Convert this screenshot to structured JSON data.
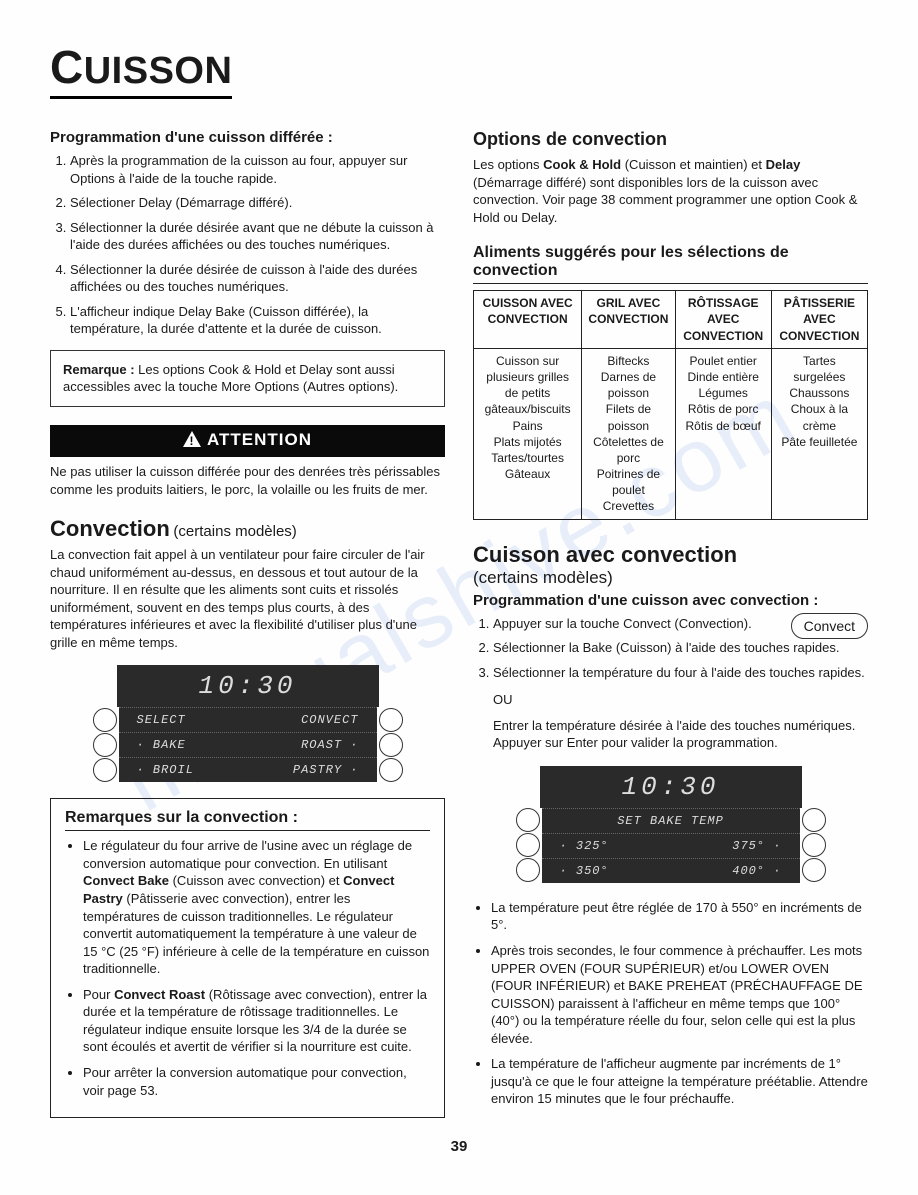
{
  "watermark": "manualshive.com",
  "page_title": "CUISSON",
  "left": {
    "h_prog": "Programmation d'une cuisson différée :",
    "steps": [
      "Après la programmation de la cuisson au four, appuyer sur Options à l'aide de la touche rapide.",
      "Sélectioner Delay (Démarrage différé).",
      "Sélectionner la durée désirée avant que ne débute la cuisson à l'aide des durées affichées ou des touches numériques.",
      "Sélectionner la durée désirée de cuisson à l'aide des durées affichées ou des touches numériques.",
      "L'afficheur indique Delay Bake (Cuisson différée), la température, la durée d'attente et la durée de cuisson."
    ],
    "note_label": "Remarque :",
    "note_text": " Les options Cook & Hold et Delay sont aussi accessibles avec la touche More Options (Autres options).",
    "warn_label": "ATTENTION",
    "warn_text": "Ne pas utiliser la cuisson différée pour des denrées très périssables comme les produits laitiers, le porc, la volaille ou les fruits de mer.",
    "h_conv": "Convection",
    "h_conv_sub": "(certains modèles)",
    "conv_para": "La convection fait appel à un ventilateur pour faire circuler de l'air chaud uniformément au-dessus, en dessous et tout autour de la nourriture. Il en résulte que les aliments sont cuits et rissolés uniformément, souvent en des temps plus courts, à des températures inférieures et avec la flexibilité d'utiliser plus d'une grille en même temps.",
    "display1": {
      "time": "10:30",
      "rows": [
        {
          "l": "SELECT",
          "r": "CONVECT"
        },
        {
          "l": "· BAKE",
          "r": "ROAST ·"
        },
        {
          "l": "· BROIL",
          "r": "PASTRY ·"
        }
      ]
    },
    "remarks_h": "Remarques sur la convection :",
    "remarks": [
      "Le régulateur du four arrive de l'usine avec un réglage de conversion automatique pour convection. En utilisant <b>Convect Bake</b> (Cuisson avec convection) et <b>Convect Pastry</b> (Pâtisserie avec convection), entrer les températures de cuisson traditionnelles. Le régulateur convertit automatiquement la température à une valeur de 15 °C (25 °F) inférieure à celle de la température en cuisson traditionnelle.",
      "Pour <b>Convect Roast</b> (Rôtissage avec convection), entrer la durée et la température de rôtissage traditionnelles. Le régulateur indique ensuite lorsque les 3/4 de la durée se sont écoulés et avertit de vérifier si la nourriture est cuite.",
      "Pour arrêter la conversion automatique pour convection, voir page 53."
    ]
  },
  "right": {
    "h_opt": "Options de convection",
    "opt_para": "Les options <b>Cook & Hold</b> (Cuisson et maintien) et <b>Delay</b> (Démarrage différé) sont disponibles lors de la cuisson avec convection. Voir page 38 comment programmer une option Cook & Hold ou Delay.",
    "h_foods": "Aliments suggérés pour les sélections de convection",
    "table": {
      "headers": [
        "CUISSON AVEC CONVECTION",
        "GRIL AVEC CONVECTION",
        "RÔTISSAGE AVEC CONVECTION",
        "PÂTISSERIE AVEC CONVECTION"
      ],
      "cells": [
        "Cuisson sur plusieurs grilles de petits gâteaux/biscuits\nPains\nPlats mijotés\nTartes/tourtes\nGâteaux",
        "Biftecks\nDarnes de poisson\nFilets de poisson\nCôtelettes de porc\nPoitrines de poulet\nCrevettes",
        "Poulet entier\nDinde entière\nLégumes\nRôtis de porc\nRôtis de bœuf",
        "Tartes surgelées\nChaussons\nChoux à la crème\nPâte feuilletée"
      ]
    },
    "h_cuiss": "Cuisson avec convection",
    "h_cuiss_sub": "(certains modèles)",
    "h_prog2": "Programmation d'une cuisson avec convection :",
    "convect_btn": "Convect",
    "steps2": [
      "Appuyer sur la touche Convect (Convection).",
      "Sélectionner la Bake (Cuisson) à l'aide des touches rapides.",
      "Sélectionner la température du four à l'aide des touches rapides."
    ],
    "or": "OU",
    "or_para": "Entrer la température désirée à l'aide des touches numériques. Appuyer sur Enter pour valider la programmation.",
    "display2": {
      "time": "10:30",
      "row_single": "SET BAKE TEMP",
      "rows": [
        {
          "l": "· 325°",
          "r": "375° ·"
        },
        {
          "l": "· 350°",
          "r": "400° ·"
        }
      ]
    },
    "notes": [
      "La température peut être réglée de 170 à 550° en incréments de 5°.",
      "Après trois secondes, le four commence à préchauffer. Les mots UPPER OVEN (FOUR SUPÉRIEUR) et/ou LOWER OVEN (FOUR INFÉRIEUR) et BAKE PREHEAT (PRÉCHAUFFAGE DE CUISSON) paraissent à l'afficheur en même temps que 100° (40°) ou la température réelle du four, selon celle qui est la plus élevée.",
      "La température de l'afficheur augmente par incréments de 1° jusqu'à ce que le four atteigne la température préétablie. Attendre environ 15 minutes que le four préchauffe."
    ]
  },
  "page_number": "39"
}
